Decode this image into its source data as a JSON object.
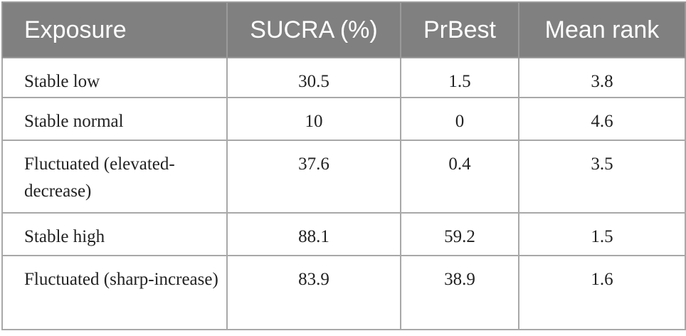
{
  "table": {
    "header": [
      "Exposure",
      "SUCRA (%)",
      "PrBest",
      "Mean rank"
    ],
    "rows": [
      [
        "Stable low",
        "30.5",
        "1.5",
        "3.8"
      ],
      [
        "Stable normal",
        "10",
        "0",
        "4.6"
      ],
      [
        "Fluctuated (elevated-decrease)",
        "37.6",
        "0.4",
        "3.5"
      ],
      [
        "Stable high",
        "88.1",
        "59.2",
        "1.5"
      ],
      [
        "Fluctuated (sharp-increase)",
        "83.9",
        "38.9",
        "1.6"
      ]
    ]
  }
}
